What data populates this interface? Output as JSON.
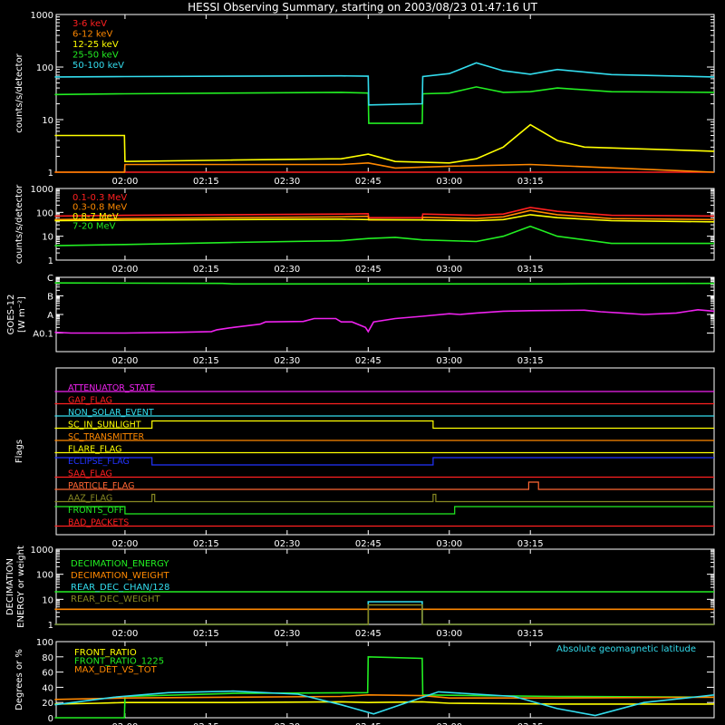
{
  "title": "HESSI Observing Summary, starting on 2003/08/23 01:47:16 UT",
  "time_ticks": [
    "02:00",
    "02:15",
    "02:30",
    "02:45",
    "03:00",
    "03:15"
  ],
  "time_tick_minutes": [
    120,
    135,
    150,
    165,
    180,
    195
  ],
  "time_range_minutes": [
    107.27,
    229.0
  ],
  "chart_data": [
    {
      "type": "line",
      "id": "lowE",
      "ylabel": "counts/s/detector",
      "yscale": "log",
      "ylim": [
        1,
        1000
      ],
      "ytick_values": [
        1,
        10,
        100,
        1000
      ],
      "ytick_labels": [
        "1",
        "10",
        "100",
        "1000"
      ],
      "series": [
        {
          "name": "3-6 keV",
          "color": "#ff2020",
          "x": [
            107,
            120,
            140,
            160,
            165,
            166,
            175,
            180,
            195,
            229
          ],
          "y": [
            1,
            1,
            1,
            1,
            1,
            1,
            1,
            1,
            1,
            1
          ]
        },
        {
          "name": "6-12 keV",
          "color": "#ff8800",
          "x": [
            107,
            119.9,
            120,
            140,
            160,
            165,
            170,
            180,
            195,
            229
          ],
          "y": [
            1,
            1,
            1.4,
            1.4,
            1.4,
            1.5,
            1.2,
            1.3,
            1.4,
            1
          ]
        },
        {
          "name": "12-25 keV",
          "color": "#ffff00",
          "x": [
            107,
            119.9,
            120,
            140,
            160,
            165,
            170,
            180,
            185,
            190,
            195,
            200,
            205,
            229
          ],
          "y": [
            5,
            5,
            1.6,
            1.7,
            1.8,
            2.2,
            1.6,
            1.5,
            1.8,
            3,
            8,
            4,
            3,
            2.5
          ]
        },
        {
          "name": "25-50 keV",
          "color": "#22ee22",
          "x": [
            107,
            120,
            140,
            160,
            165,
            165.1,
            175,
            175.1,
            180,
            185,
            190,
            195,
            200,
            210,
            229
          ],
          "y": [
            30,
            31,
            32,
            33,
            32,
            8.5,
            8.5,
            31,
            32,
            42,
            33,
            34,
            40,
            34,
            33
          ]
        },
        {
          "name": "50-100 keV",
          "color": "#33ddee",
          "x": [
            107,
            120,
            140,
            160,
            165,
            165.1,
            175,
            175.1,
            180,
            185,
            190,
            195,
            200,
            210,
            229
          ],
          "y": [
            65,
            66,
            67,
            68,
            67,
            19,
            20,
            66,
            75,
            120,
            85,
            73,
            90,
            72,
            65
          ]
        }
      ]
    },
    {
      "type": "line",
      "id": "highE",
      "ylabel": "counts/s/detector",
      "yscale": "log",
      "ylim": [
        1,
        1000
      ],
      "ytick_values": [
        1,
        10,
        100,
        1000
      ],
      "ytick_labels": [
        "1",
        "10",
        "100",
        "1000"
      ],
      "series": [
        {
          "name": "0.1-0.3 MeV",
          "color": "#ff2020",
          "x": [
            107,
            120,
            140,
            160,
            165,
            165.1,
            175,
            175.1,
            185,
            190,
            195,
            200,
            210,
            229
          ],
          "y": [
            70,
            75,
            80,
            85,
            88,
            60,
            60,
            85,
            75,
            85,
            160,
            110,
            75,
            70
          ]
        },
        {
          "name": "0.3-0.8 MeV",
          "color": "#ff8800",
          "x": [
            107,
            120,
            140,
            160,
            165,
            165.1,
            175,
            175.1,
            185,
            190,
            195,
            200,
            210,
            229
          ],
          "y": [
            50,
            55,
            60,
            65,
            68,
            48,
            48,
            62,
            55,
            65,
            120,
            80,
            55,
            50
          ]
        },
        {
          "name": "0.8-7 MeV",
          "color": "#ffff00",
          "x": [
            107,
            120,
            140,
            160,
            165,
            175,
            185,
            190,
            195,
            200,
            210,
            229
          ],
          "y": [
            45,
            47,
            50,
            52,
            50,
            48,
            45,
            50,
            80,
            60,
            45,
            40
          ]
        },
        {
          "name": "7-20 MeV",
          "color": "#22ee22",
          "x": [
            107,
            120,
            140,
            160,
            165,
            170,
            175,
            185,
            190,
            195,
            200,
            210,
            229
          ],
          "y": [
            4,
            4.5,
            5.5,
            6.5,
            8,
            9,
            7,
            6,
            10,
            26,
            10,
            5,
            5
          ]
        }
      ]
    },
    {
      "type": "line",
      "id": "goes",
      "ylabel": "GOES-12",
      "ylabel2": "[W m⁻²]",
      "yscale": "log",
      "ylim": [
        1e-09,
        1e-05
      ],
      "ytick_values": [
        1e-08,
        1e-07,
        1e-06,
        1e-05
      ],
      "ytick_labels": [
        "A0.1",
        "A",
        "B",
        "C"
      ],
      "series": [
        {
          "name": "",
          "color": "#22ee22",
          "x": [
            107,
            138,
            140,
            200,
            206,
            229
          ],
          "y": [
            5e-06,
            4.7e-06,
            4.4e-06,
            4.4e-06,
            4.6e-06,
            4.7e-06
          ]
        },
        {
          "name": "",
          "color": "#ee22ee",
          "x": [
            107,
            110,
            120,
            130,
            136,
            137,
            140,
            145,
            146,
            153,
            155,
            159,
            160,
            162,
            164.5,
            165,
            166,
            170,
            175,
            180,
            182,
            185,
            190,
            195,
            205,
            208,
            212,
            216,
            222,
            226,
            229
          ],
          "y": [
            1.1e-08,
            1e-08,
            1e-08,
            1.1e-08,
            1.2e-08,
            1.5e-08,
            2e-08,
            3e-08,
            4e-08,
            4.2e-08,
            6e-08,
            6e-08,
            4e-08,
            4e-08,
            2e-08,
            1.2e-08,
            4e-08,
            6e-08,
            8e-08,
            1.1e-07,
            1e-07,
            1.2e-07,
            1.5e-07,
            1.6e-07,
            1.7e-07,
            1.4e-07,
            1.2e-07,
            1e-07,
            1.2e-07,
            1.8e-07,
            1.5e-07
          ]
        }
      ]
    },
    {
      "type": "line",
      "id": "flags",
      "ylabel": "Flags",
      "series": [
        {
          "name": "ATTENUATOR_STATE",
          "color": "#ee22ee",
          "x": [
            107,
            229
          ],
          "y": [
            0,
            0
          ]
        },
        {
          "name": "GAP_FLAG",
          "color": "#ff2020",
          "x": [
            107,
            229
          ],
          "y": [
            0,
            0
          ]
        },
        {
          "name": "NON_SOLAR_EVENT",
          "color": "#33ddee",
          "x": [
            107,
            229
          ],
          "y": [
            0,
            0
          ]
        },
        {
          "name": "SC_IN_SUNLIGHT",
          "color": "#ffff00",
          "x": [
            107,
            125,
            125,
            177,
            177,
            229
          ],
          "y": [
            0,
            0,
            1,
            1,
            0,
            0
          ]
        },
        {
          "name": "SC_TRANSMITTER",
          "color": "#ff8800",
          "x": [
            107,
            229
          ],
          "y": [
            0,
            0
          ]
        },
        {
          "name": "FLARE_FLAG",
          "color": "#ffff00",
          "x": [
            107,
            229
          ],
          "y": [
            0,
            0
          ]
        },
        {
          "name": "ECLIPSE_FLAG",
          "color": "#2233ff",
          "x": [
            107,
            125,
            125,
            177,
            177,
            229
          ],
          "y": [
            1,
            1,
            0,
            0,
            1,
            1
          ]
        },
        {
          "name": "SAA_FLAG",
          "color": "#ff2020",
          "x": [
            107,
            229
          ],
          "y": [
            0,
            0
          ]
        },
        {
          "name": "PARTICLE_FLAG",
          "color": "#ff6633",
          "x": [
            107,
            194.7,
            194.7,
            196.5,
            196.5,
            229
          ],
          "y": [
            0,
            0,
            1,
            1,
            0,
            0
          ]
        },
        {
          "name": "AAZ_FLAG",
          "color": "#888822",
          "x": [
            107,
            125,
            125,
            125.5,
            125.5,
            177,
            177,
            177.5,
            177.5,
            229
          ],
          "y": [
            0,
            0,
            1,
            1,
            0,
            0,
            1,
            1,
            0,
            0
          ]
        },
        {
          "name": "FRONTS_OFF",
          "color": "#22ee22",
          "x": [
            107,
            120,
            120,
            181,
            181,
            229
          ],
          "y": [
            1,
            1,
            0,
            0,
            1,
            1
          ]
        },
        {
          "name": "BAD_PACKETS",
          "color": "#ff2020",
          "x": [
            107,
            229
          ],
          "y": [
            0,
            0
          ]
        }
      ]
    },
    {
      "type": "line",
      "id": "decim",
      "ylabel": "DECIMATION",
      "ylabel2": "ENERGY or weight",
      "yscale": "log",
      "ylim": [
        1,
        1000
      ],
      "ytick_values": [
        1,
        10,
        100,
        1000
      ],
      "ytick_labels": [
        "1",
        "10",
        "100",
        "1000"
      ],
      "series": [
        {
          "name": "DECIMATION_ENERGY",
          "color": "#22ee22",
          "x": [
            107,
            229
          ],
          "y": [
            20,
            20
          ]
        },
        {
          "name": "DECIMATION_WEIGHT",
          "color": "#ff8800",
          "x": [
            107,
            229
          ],
          "y": [
            4,
            4
          ]
        },
        {
          "name": "REAR_DEC_CHAN/128",
          "color": "#33ddee",
          "x": [
            107,
            165,
            165,
            175,
            175,
            229
          ],
          "y": [
            1,
            1,
            8,
            8,
            1,
            1
          ]
        },
        {
          "name": "REAR_DEC_WEIGHT",
          "color": "#888822",
          "x": [
            107,
            165,
            165,
            175,
            175,
            229
          ],
          "y": [
            1,
            1,
            6,
            6,
            1,
            1
          ]
        }
      ]
    },
    {
      "type": "line",
      "id": "ratio",
      "ylabel": "Degrees or %",
      "ylim": [
        0,
        100
      ],
      "ytick_values": [
        0,
        20,
        40,
        60,
        80,
        100
      ],
      "ytick_labels": [
        "0",
        "20",
        "40",
        "60",
        "80",
        "100"
      ],
      "annotation": "Absolute geomagnetic latitude",
      "annotation_color": "#33ddee",
      "series": [
        {
          "name": "FRONT_RATIO",
          "color": "#ffff00",
          "x": [
            107,
            115,
            120,
            140,
            160,
            165,
            175,
            180,
            200,
            229
          ],
          "y": [
            18,
            19,
            20,
            20,
            21,
            20,
            21,
            19,
            18,
            18
          ]
        },
        {
          "name": "FRONT_RATIO_1225",
          "color": "#22ee22",
          "x": [
            107,
            119.9,
            120,
            140,
            164.9,
            165,
            175,
            175.1,
            200,
            229
          ],
          "y": [
            0,
            0,
            28,
            32,
            33,
            80,
            78,
            30,
            28,
            27
          ]
        },
        {
          "name": "MAX_DET_VS_TOT",
          "color": "#ff8800",
          "x": [
            107,
            120,
            140,
            160,
            165,
            175,
            180,
            200,
            229
          ],
          "y": [
            24,
            26,
            27,
            28,
            30,
            29,
            26,
            26,
            27
          ]
        },
        {
          "name": "",
          "color": "#33ddee",
          "x": [
            107,
            118,
            128,
            140,
            152,
            160,
            166,
            178,
            192,
            200,
            207,
            216,
            229
          ],
          "y": [
            17,
            27,
            33,
            35,
            31,
            17,
            5,
            34,
            28,
            12,
            3,
            20,
            30
          ]
        }
      ]
    }
  ]
}
